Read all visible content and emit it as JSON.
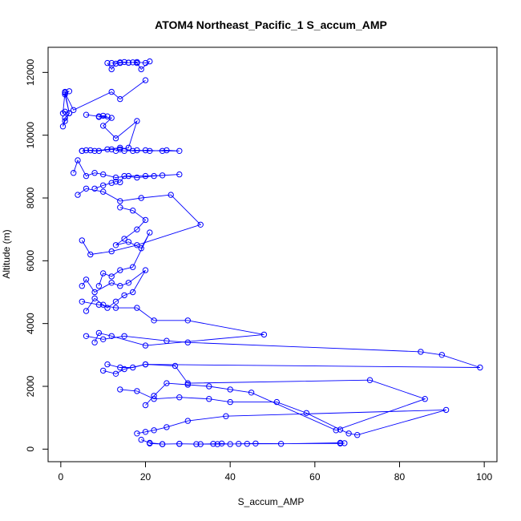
{
  "chart_data": {
    "type": "scatter",
    "title": "ATOM4 Northeast_Pacific_1 S_accum_AMP",
    "xlabel": "S_accum_AMP",
    "ylabel": "Altitude (m)",
    "xlim": [
      -3,
      103
    ],
    "ylim": [
      -400,
      12800
    ],
    "x_ticks": [
      0,
      20,
      40,
      60,
      80,
      100
    ],
    "x_tick_labels": [
      "0",
      "20",
      "40",
      "60",
      "80",
      "100"
    ],
    "y_ticks": [
      0,
      2000,
      4000,
      6000,
      8000,
      10000,
      12000
    ],
    "y_tick_labels": [
      "0",
      "2000",
      "4000",
      "6000",
      "8000",
      "10000",
      "12000"
    ],
    "grid": false,
    "legend": "none",
    "marker": "open-circle",
    "connected": true,
    "color": "#0000ff",
    "series": [
      {
        "x": [
          12,
          14,
          16,
          18,
          20,
          21,
          19,
          18,
          17,
          16,
          15,
          14,
          13,
          12,
          11
        ],
        "y": [
          12300,
          12320,
          12310,
          12330,
          12300,
          12350,
          12100,
          12300,
          12320,
          12310,
          12330,
          12300,
          12280,
          12100,
          12300
        ]
      },
      {
        "x": [
          20,
          14,
          12,
          3,
          1,
          2,
          1,
          2,
          1,
          0.5,
          1,
          2,
          1,
          0.5,
          1,
          2
        ],
        "y": [
          11750,
          11150,
          11380,
          10800,
          11350,
          11400,
          11300,
          10700,
          10750,
          10700,
          11380,
          10700,
          10550,
          10280,
          10450,
          10700
        ]
      },
      {
        "x": [
          6,
          9,
          10,
          11,
          9,
          12,
          10,
          13,
          18,
          16,
          14,
          13
        ],
        "y": [
          10650,
          10600,
          10620,
          10600,
          10580,
          10550,
          10300,
          9900,
          10450,
          9600,
          9550,
          9500
        ]
      },
      {
        "x": [
          5,
          7,
          9,
          12,
          15,
          18,
          21,
          25,
          28,
          24,
          20,
          17,
          14,
          11,
          8,
          6,
          5
        ],
        "y": [
          9500,
          9520,
          9500,
          9550,
          9500,
          9520,
          9500,
          9520,
          9500,
          9500,
          9520,
          9500,
          9600,
          9550,
          9500,
          9520,
          9500
        ]
      },
      {
        "x": [
          3,
          4,
          6,
          8,
          10,
          13,
          16,
          20,
          24,
          28,
          22,
          18,
          15,
          14,
          13,
          12,
          10,
          8
        ],
        "y": [
          8800,
          9200,
          8700,
          8800,
          8750,
          8650,
          8700,
          8700,
          8720,
          8750,
          8700,
          8650,
          8700,
          8500,
          8520,
          8480,
          8400,
          8300
        ]
      },
      {
        "x": [
          4,
          6,
          10,
          14,
          19,
          26,
          33,
          18,
          12,
          7,
          5
        ],
        "y": [
          8100,
          8300,
          8200,
          7900,
          8000,
          8100,
          7150,
          6500,
          6300,
          6200,
          6650
        ]
      },
      {
        "x": [
          14,
          17,
          20,
          18,
          15,
          13,
          16,
          19,
          21,
          17,
          14,
          12,
          10,
          9
        ],
        "y": [
          7700,
          7600,
          7300,
          7000,
          6700,
          6500,
          6600,
          6400,
          6900,
          5800,
          5700,
          5500,
          5600,
          5200
        ]
      },
      {
        "x": [
          5,
          6,
          8,
          12,
          14,
          16,
          20,
          17,
          15,
          13,
          11,
          10,
          8,
          6
        ],
        "y": [
          5200,
          5400,
          5000,
          5300,
          5200,
          5300,
          5700,
          5000,
          4900,
          4700,
          4500,
          4600,
          4800,
          4400
        ]
      },
      {
        "x": [
          5,
          9,
          13,
          18,
          22,
          30,
          48,
          20,
          12,
          9,
          8
        ],
        "y": [
          4700,
          4600,
          4500,
          4500,
          4100,
          4100,
          3650,
          3300,
          3600,
          3700,
          3400
        ]
      },
      {
        "x": [
          6,
          10,
          15,
          25,
          30,
          85,
          90,
          99,
          20,
          15,
          13,
          10
        ],
        "y": [
          3600,
          3500,
          3600,
          3450,
          3400,
          3100,
          3000,
          2600,
          2700,
          2550,
          2400,
          2500
        ]
      },
      {
        "x": [
          11,
          14,
          17,
          20,
          27,
          30,
          73,
          86,
          65,
          45,
          40,
          35,
          30,
          25,
          22,
          20
        ],
        "y": [
          2700,
          2600,
          2600,
          2700,
          2650,
          2100,
          2200,
          1600,
          600,
          1800,
          1900,
          2000,
          2050,
          2100,
          1700,
          1400
        ]
      },
      {
        "x": [
          14,
          18,
          22,
          28,
          35,
          40,
          51,
          58,
          66,
          68,
          70,
          91,
          39,
          30,
          25,
          22,
          20,
          18
        ],
        "y": [
          1900,
          1850,
          1600,
          1650,
          1600,
          1500,
          1500,
          1150,
          620,
          500,
          450,
          1250,
          1050,
          900,
          700,
          600,
          550,
          500
        ]
      },
      {
        "x": [
          19,
          21,
          24,
          28,
          32,
          36,
          38,
          40,
          42,
          46,
          52,
          66,
          67,
          66,
          44,
          37,
          33,
          28,
          24,
          21
        ],
        "y": [
          300,
          200,
          160,
          170,
          160,
          170,
          180,
          160,
          170,
          180,
          170,
          200,
          190,
          180,
          170,
          160,
          160,
          170,
          160,
          180
        ]
      }
    ]
  }
}
